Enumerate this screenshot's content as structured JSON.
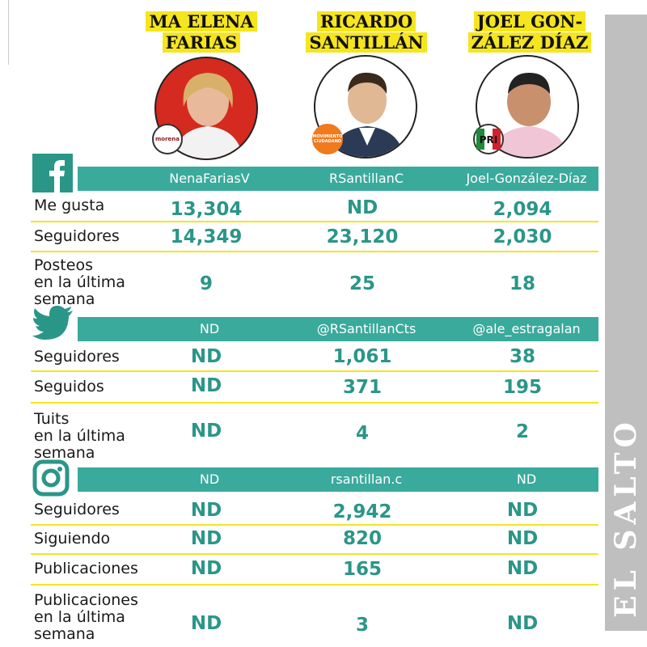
{
  "candidates": [
    {
      "name_line1": "MA ELENA",
      "name_line2": "FARIAS",
      "party": "morena"
    },
    {
      "name_line1": "RICARDO",
      "name_line2": "SANTILLÁN",
      "party": "MOVIMIENTO CIUDADANO"
    },
    {
      "name_line1": "JOEL GON-",
      "name_line2": "ZÁLEZ DÍAZ",
      "party": "PRI"
    }
  ],
  "facebook": {
    "handles": [
      "NenaFariasV",
      "RSantillanC",
      "Joel-González-Díaz"
    ],
    "rows": [
      {
        "label": "Me gusta",
        "values": [
          "13,304",
          "ND",
          "2,094"
        ]
      },
      {
        "label": "Seguidores",
        "values": [
          "14,349",
          "23,120",
          "2,030"
        ]
      },
      {
        "label_lines": [
          "Posteos",
          "en la última",
          "semana"
        ],
        "values": [
          "9",
          "25",
          "18"
        ]
      }
    ]
  },
  "twitter": {
    "handles": [
      "ND",
      "@RSantillanCts",
      "@ale_estragalan"
    ],
    "rows": [
      {
        "label": "Seguidores",
        "values": [
          "ND",
          "1,061",
          "38"
        ]
      },
      {
        "label": "Seguidos",
        "values": [
          "ND",
          "371",
          "195"
        ]
      },
      {
        "label_lines": [
          "Tuits",
          "en la última",
          "semana"
        ],
        "values": [
          "ND",
          "4",
          "2"
        ]
      }
    ]
  },
  "instagram": {
    "handles": [
      "ND",
      "rsantillan.c",
      "ND"
    ],
    "rows": [
      {
        "label": "Seguidores",
        "values": [
          "ND",
          "2,942",
          "ND"
        ]
      },
      {
        "label": "Siguiendo",
        "values": [
          "ND",
          "820",
          "ND"
        ]
      },
      {
        "label": "Publicaciones",
        "values": [
          "ND",
          "165",
          "ND"
        ]
      },
      {
        "label_lines": [
          "Publicaciones",
          "en la última",
          "semana"
        ],
        "values": [
          "ND",
          "3",
          "ND"
        ]
      }
    ]
  },
  "brand": "EL SALTO",
  "colors": {
    "accent": "#3aaa9c",
    "value": "#2a9688",
    "highlight": "#f5e51f",
    "side": "#bfbfbf"
  },
  "icons": [
    "facebook-icon",
    "twitter-icon",
    "instagram-icon"
  ]
}
